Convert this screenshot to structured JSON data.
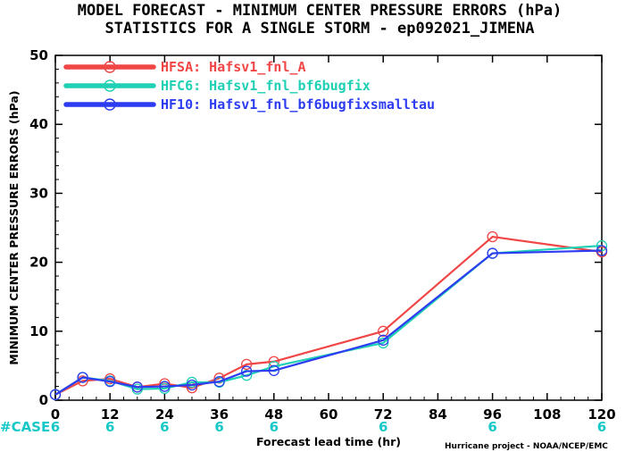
{
  "title_line1": "MODEL FORECAST - MINIMUM CENTER PRESSURE ERRORS (hPa)",
  "title_line2": "STATISTICS FOR A SINGLE STORM - ep092021_JIMENA",
  "case_label": "#CASE",
  "credit": "Hurricane project - NOAA/NCEP/EMC",
  "colors": {
    "case": "#18c8c8"
  },
  "chart_data": {
    "type": "line",
    "xlabel": "Forecast lead time (hr)",
    "ylabel": "MINIMUM CENTER PRESSURE ERRORS (hPa)",
    "xlim": [
      0,
      120
    ],
    "ylim": [
      0,
      50
    ],
    "xticks": [
      0,
      12,
      24,
      36,
      48,
      60,
      72,
      84,
      96,
      108,
      120
    ],
    "yticks": [
      0,
      10,
      20,
      30,
      40,
      50
    ],
    "x_tick_labels": [
      "0",
      "12",
      "24",
      "36",
      "48",
      "60",
      "72",
      "84",
      "96",
      "108",
      "120"
    ],
    "y_tick_labels": [
      "0",
      "10",
      "20",
      "30",
      "40",
      "50"
    ],
    "legend_position": "top-left",
    "grid": false,
    "x": [
      0,
      6,
      12,
      18,
      24,
      30,
      36,
      42,
      48,
      72,
      96,
      120
    ],
    "series": [
      {
        "name": "HFSA: Hafsv1_fnl_A",
        "color": "#f04646",
        "values": [
          0.8,
          2.8,
          3.1,
          1.9,
          2.4,
          1.8,
          3.2,
          5.2,
          5.6,
          10.0,
          23.7,
          21.5
        ]
      },
      {
        "name": "HFC6: Hafsv1_fnl_bf6bugfix",
        "color": "#20d0b4",
        "values": [
          0.8,
          3.3,
          2.8,
          1.6,
          1.7,
          2.6,
          2.6,
          3.6,
          4.9,
          8.3,
          21.3,
          22.4
        ]
      },
      {
        "name": "HF10: Hafsv1_fnl_bf6bugfixsmalltau",
        "color": "#2d3cf0",
        "values": [
          0.8,
          3.3,
          2.7,
          1.9,
          2.0,
          2.2,
          2.7,
          4.2,
          4.3,
          8.7,
          21.3,
          21.7
        ]
      }
    ],
    "case_counts": {
      "x": [
        0,
        12,
        24,
        36,
        48,
        72,
        96,
        120
      ],
      "labels": [
        "6",
        "6",
        "6",
        "6",
        "6",
        "6",
        "6",
        "6"
      ]
    }
  }
}
